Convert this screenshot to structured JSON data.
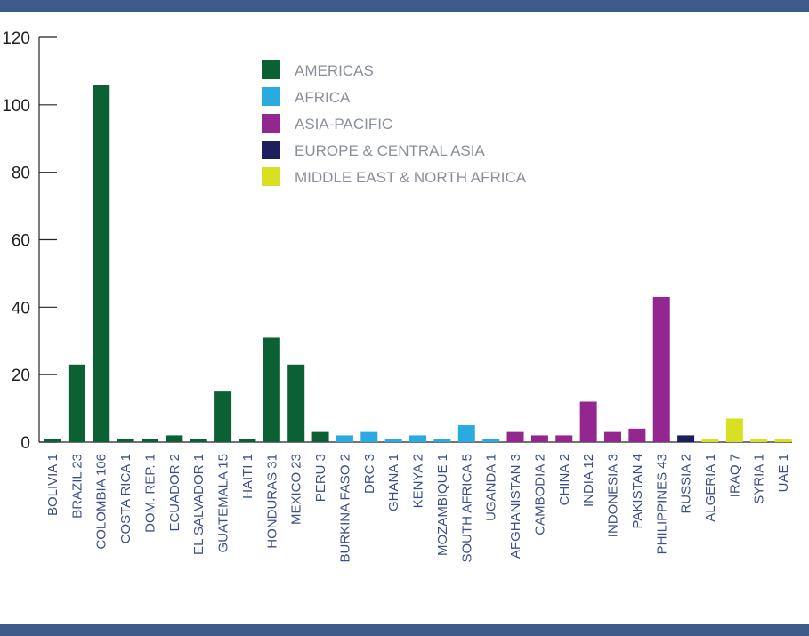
{
  "colors": {
    "rule": "#3d5a8a",
    "axis": "#222222",
    "tick_label": "#3d4f8a",
    "legend_text": "#8a8f99"
  },
  "chart_data": {
    "type": "bar",
    "title": "",
    "xlabel": "",
    "ylabel": "",
    "ylim": [
      0,
      120
    ],
    "yticks": [
      0,
      20,
      40,
      60,
      80,
      100,
      120
    ],
    "grid": false,
    "legend_position": "top-center",
    "legend": [
      {
        "name": "AMERICAS",
        "color": "#0b6134"
      },
      {
        "name": "AFRICA",
        "color": "#29abe2"
      },
      {
        "name": "ASIA-PACIFIC",
        "color": "#93278f"
      },
      {
        "name": "EUROPE & CENTRAL ASIA",
        "color": "#1b1f5e"
      },
      {
        "name": "MIDDLE EAST & NORTH AFRICA",
        "color": "#d7e021"
      }
    ],
    "categories": [
      "BOLIVIA 1",
      "BRAZIL 23",
      "COLOMBIA 106",
      "COSTA RICA 1",
      "DOM. REP. 1",
      "ECUADOR 2",
      "EL SALVADOR 1",
      "GUATEMALA 15",
      "HAITI 1",
      "HONDURAS 31",
      "MEXICO 23",
      "PERU 3",
      "BURKINA FASO 2",
      "DRC 3",
      "GHANA 1",
      "KENYA 2",
      "MOZAMBIQUE 1",
      "SOUTH AFRICA 5",
      "UGANDA 1",
      "AFGHANISTAN 3",
      "CAMBODIA 2",
      "CHINA 2",
      "INDIA 12",
      "INDONESIA 3",
      "PAKISTAN 4",
      "PHILIPPINES 43",
      "RUSSIA 2",
      "ALGERIA 1",
      "IRAQ 7",
      "SYRIA 1",
      "UAE 1"
    ],
    "values": [
      1,
      23,
      106,
      1,
      1,
      2,
      1,
      15,
      1,
      31,
      23,
      3,
      2,
      3,
      1,
      2,
      1,
      5,
      1,
      3,
      2,
      2,
      12,
      3,
      4,
      43,
      2,
      1,
      7,
      1,
      1
    ],
    "regions": [
      "AMERICAS",
      "AMERICAS",
      "AMERICAS",
      "AMERICAS",
      "AMERICAS",
      "AMERICAS",
      "AMERICAS",
      "AMERICAS",
      "AMERICAS",
      "AMERICAS",
      "AMERICAS",
      "AMERICAS",
      "AFRICA",
      "AFRICA",
      "AFRICA",
      "AFRICA",
      "AFRICA",
      "AFRICA",
      "AFRICA",
      "ASIA-PACIFIC",
      "ASIA-PACIFIC",
      "ASIA-PACIFIC",
      "ASIA-PACIFIC",
      "ASIA-PACIFIC",
      "ASIA-PACIFIC",
      "ASIA-PACIFIC",
      "EUROPE & CENTRAL ASIA",
      "MIDDLE EAST & NORTH AFRICA",
      "MIDDLE EAST & NORTH AFRICA",
      "MIDDLE EAST & NORTH AFRICA",
      "MIDDLE EAST & NORTH AFRICA"
    ]
  }
}
